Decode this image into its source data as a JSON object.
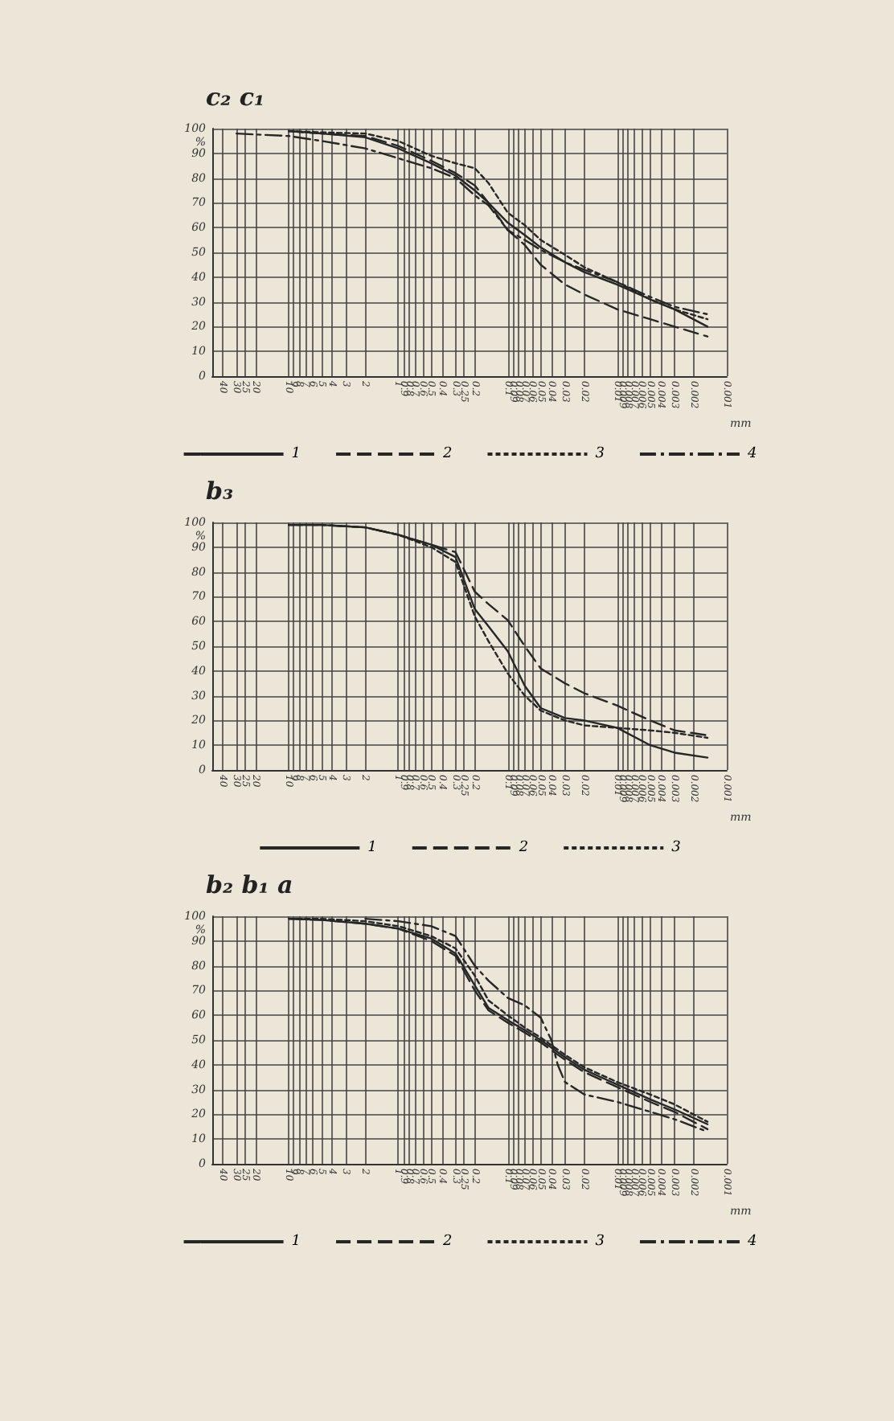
{
  "chart_data": [
    {
      "type": "line",
      "title": "c₂ c₁",
      "xlabel": "mm",
      "ylabel": "%",
      "log": "x",
      "grid": true,
      "legend": "bottom",
      "marker": "none",
      "xlim": [
        50,
        0.001
      ],
      "xticks": [
        40,
        30,
        25,
        20,
        10,
        9,
        8,
        7,
        6,
        5,
        4,
        3,
        2,
        1,
        0.9,
        0.8,
        0.7,
        0.6,
        0.5,
        0.4,
        0.3,
        0.25,
        0.2,
        0.1,
        0.09,
        0.08,
        0.07,
        0.06,
        0.05,
        0.04,
        0.03,
        0.02,
        0.01,
        0.009,
        0.008,
        0.007,
        0.006,
        0.005,
        0.004,
        0.003,
        0.002,
        0.001
      ],
      "ylim": [
        0,
        100
      ],
      "yticks": [
        0,
        10,
        20,
        30,
        40,
        50,
        60,
        70,
        80,
        90,
        100
      ],
      "series": [
        {
          "name": "1",
          "color": "#262626",
          "line_style": "solid",
          "x": [
            10,
            5,
            2,
            1,
            0.5,
            0.3,
            0.2,
            0.15,
            0.1,
            0.07,
            0.05,
            0.03,
            0.02,
            0.01,
            0.005,
            0.003,
            0.0015
          ],
          "values": [
            99,
            98,
            96.5,
            92,
            86,
            81,
            75,
            70,
            62,
            57,
            52,
            46,
            42,
            37,
            31,
            27,
            20
          ]
        },
        {
          "name": "2",
          "color": "#262626",
          "line_style": "dashed",
          "x": [
            10,
            5,
            2,
            1,
            0.5,
            0.3,
            0.2,
            0.15,
            0.1,
            0.07,
            0.05,
            0.03,
            0.02,
            0.01,
            0.005,
            0.003,
            0.0015
          ],
          "values": [
            99,
            98,
            97,
            93,
            87,
            82,
            77,
            70,
            59,
            53,
            45,
            37,
            33,
            27,
            23,
            20,
            16
          ]
        },
        {
          "name": "3",
          "color": "#262626",
          "line_style": "dotted",
          "x": [
            10,
            5,
            2,
            1,
            0.5,
            0.3,
            0.2,
            0.15,
            0.1,
            0.07,
            0.05,
            0.03,
            0.02,
            0.01,
            0.005,
            0.003,
            0.0015
          ],
          "values": [
            99,
            98.5,
            98,
            95,
            89,
            86,
            84,
            78,
            66,
            61,
            55,
            49,
            44,
            38,
            31,
            27,
            23
          ]
        },
        {
          "name": "4",
          "color": "#262626",
          "line_style": "dashdot",
          "x": [
            30,
            10,
            5,
            2,
            1,
            0.5,
            0.3,
            0.2,
            0.15,
            0.1,
            0.07,
            0.05,
            0.03,
            0.02,
            0.01,
            0.005,
            0.003,
            0.0015
          ],
          "values": [
            98,
            97,
            95,
            92,
            88,
            84,
            80,
            73,
            69,
            59,
            55,
            51,
            46,
            43,
            38,
            32,
            28,
            25
          ]
        }
      ]
    },
    {
      "type": "line",
      "title": "b₃",
      "xlabel": "mm",
      "ylabel": "%",
      "log": "x",
      "grid": true,
      "legend": "bottom",
      "marker": "none",
      "xlim": [
        50,
        0.001
      ],
      "xticks": [
        40,
        30,
        25,
        20,
        10,
        9,
        8,
        7,
        6,
        5,
        4,
        3,
        2,
        1,
        0.9,
        0.8,
        0.7,
        0.6,
        0.5,
        0.4,
        0.3,
        0.25,
        0.2,
        0.1,
        0.09,
        0.08,
        0.07,
        0.06,
        0.05,
        0.04,
        0.03,
        0.02,
        0.01,
        0.009,
        0.008,
        0.007,
        0.006,
        0.005,
        0.004,
        0.003,
        0.002,
        0.001
      ],
      "ylim": [
        0,
        100
      ],
      "yticks": [
        0,
        10,
        20,
        30,
        40,
        50,
        60,
        70,
        80,
        90,
        100
      ],
      "series": [
        {
          "name": "1",
          "color": "#262626",
          "line_style": "solid",
          "x": [
            10,
            5,
            2,
            1,
            0.5,
            0.3,
            0.2,
            0.15,
            0.1,
            0.07,
            0.05,
            0.03,
            0.02,
            0.01,
            0.005,
            0.003,
            0.0015
          ],
          "values": [
            99,
            99,
            98,
            95,
            91,
            86,
            65,
            58,
            48,
            34,
            25,
            21,
            20,
            17,
            10,
            7,
            5
          ]
        },
        {
          "name": "2",
          "color": "#262626",
          "line_style": "dashed",
          "x": [
            10,
            5,
            2,
            1,
            0.5,
            0.3,
            0.2,
            0.15,
            0.1,
            0.07,
            0.05,
            0.03,
            0.02,
            0.01,
            0.005,
            0.003,
            0.0015
          ],
          "values": [
            99,
            99,
            98,
            95,
            91,
            88,
            72,
            67,
            60.5,
            50,
            41,
            35,
            31,
            26,
            20,
            16,
            14
          ]
        },
        {
          "name": "3",
          "color": "#262626",
          "line_style": "dotted",
          "x": [
            10,
            5,
            2,
            1,
            0.5,
            0.3,
            0.2,
            0.15,
            0.1,
            0.07,
            0.05,
            0.03,
            0.02,
            0.01,
            0.005,
            0.003,
            0.0015
          ],
          "values": [
            99,
            99,
            98,
            95,
            90,
            84,
            62,
            52,
            39,
            30,
            24,
            20,
            18,
            17,
            16,
            15,
            13
          ]
        }
      ]
    },
    {
      "type": "line",
      "title": "b₂ b₁ a",
      "xlabel": "mm",
      "ylabel": "%",
      "log": "x",
      "grid": true,
      "legend": "bottom",
      "marker": "none",
      "xlim": [
        50,
        0.001
      ],
      "xticks": [
        40,
        30,
        25,
        20,
        10,
        9,
        8,
        7,
        6,
        5,
        4,
        3,
        2,
        1,
        0.9,
        0.8,
        0.7,
        0.6,
        0.5,
        0.4,
        0.3,
        0.25,
        0.2,
        0.1,
        0.09,
        0.08,
        0.07,
        0.06,
        0.05,
        0.04,
        0.03,
        0.02,
        0.01,
        0.009,
        0.008,
        0.007,
        0.006,
        0.005,
        0.004,
        0.003,
        0.002,
        0.001
      ],
      "ylim": [
        0,
        100
      ],
      "yticks": [
        0,
        10,
        20,
        30,
        40,
        50,
        60,
        70,
        80,
        90,
        100
      ],
      "series": [
        {
          "name": "1",
          "color": "#262626",
          "line_style": "solid",
          "x": [
            10,
            5,
            2,
            1,
            0.5,
            0.3,
            0.2,
            0.15,
            0.1,
            0.07,
            0.05,
            0.03,
            0.02,
            0.01,
            0.005,
            0.003,
            0.0015
          ],
          "values": [
            99,
            98.5,
            97,
            95,
            91,
            85,
            72,
            63,
            58,
            54,
            50,
            43,
            38,
            32,
            26,
            22,
            16
          ]
        },
        {
          "name": "2",
          "color": "#262626",
          "line_style": "dashed",
          "x": [
            10,
            5,
            2,
            1,
            0.5,
            0.3,
            0.2,
            0.15,
            0.1,
            0.07,
            0.05,
            0.03,
            0.02,
            0.01,
            0.005,
            0.003,
            0.0015
          ],
          "values": [
            99,
            98.5,
            97,
            95,
            90,
            84,
            70,
            62,
            57,
            53,
            49,
            42,
            37,
            31,
            25,
            21,
            14
          ]
        },
        {
          "name": "3",
          "color": "#262626",
          "line_style": "dotted",
          "x": [
            10,
            5,
            2,
            1,
            0.5,
            0.3,
            0.2,
            0.15,
            0.1,
            0.07,
            0.05,
            0.03,
            0.02,
            0.01,
            0.005,
            0.003,
            0.0015
          ],
          "values": [
            99,
            99,
            98,
            96,
            92,
            87,
            76,
            66,
            60,
            55,
            51,
            44,
            39,
            33,
            28,
            24,
            17
          ]
        },
        {
          "name": "4",
          "color": "#262626",
          "line_style": "dashdot",
          "x": [
            2,
            1,
            0.5,
            0.3,
            0.2,
            0.15,
            0.1,
            0.07,
            0.05,
            0.04,
            0.035,
            0.03,
            0.02,
            0.01,
            0.005,
            0.003,
            0.0015
          ],
          "values": [
            99,
            98,
            96,
            92,
            80,
            74,
            67,
            64,
            59,
            50,
            40,
            33,
            28,
            25,
            21,
            18,
            13
          ]
        }
      ]
    }
  ]
}
